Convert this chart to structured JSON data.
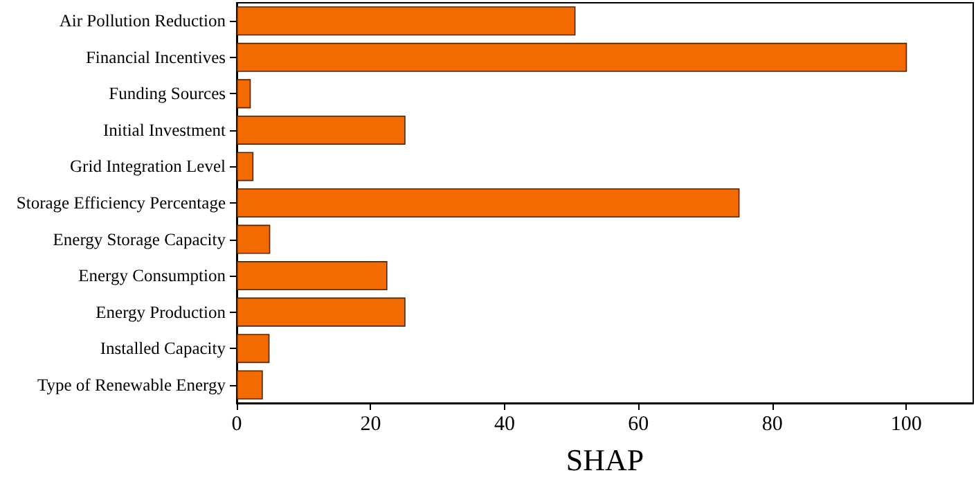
{
  "chart_data": {
    "type": "bar",
    "orientation": "horizontal",
    "xlabel": "SHAP",
    "categories": [
      "Air Pollution Reduction",
      "Financial Incentives",
      "Funding Sources",
      "Initial Investment",
      "Grid Integration Level",
      "Storage Efficiency Percentage",
      "Energy Storage Capacity",
      "Energy Consumption",
      "Energy Production",
      "Installed Capacity",
      "Type of Renewable Energy"
    ],
    "values": [
      50.6,
      100.1,
      2.1,
      25.2,
      2.5,
      75.1,
      5.0,
      22.5,
      25.2,
      4.9,
      3.9
    ],
    "color": "#f26a00",
    "xlim": [
      0,
      110
    ],
    "xticks": [
      0,
      20,
      40,
      60,
      80,
      100
    ],
    "grid": false
  }
}
